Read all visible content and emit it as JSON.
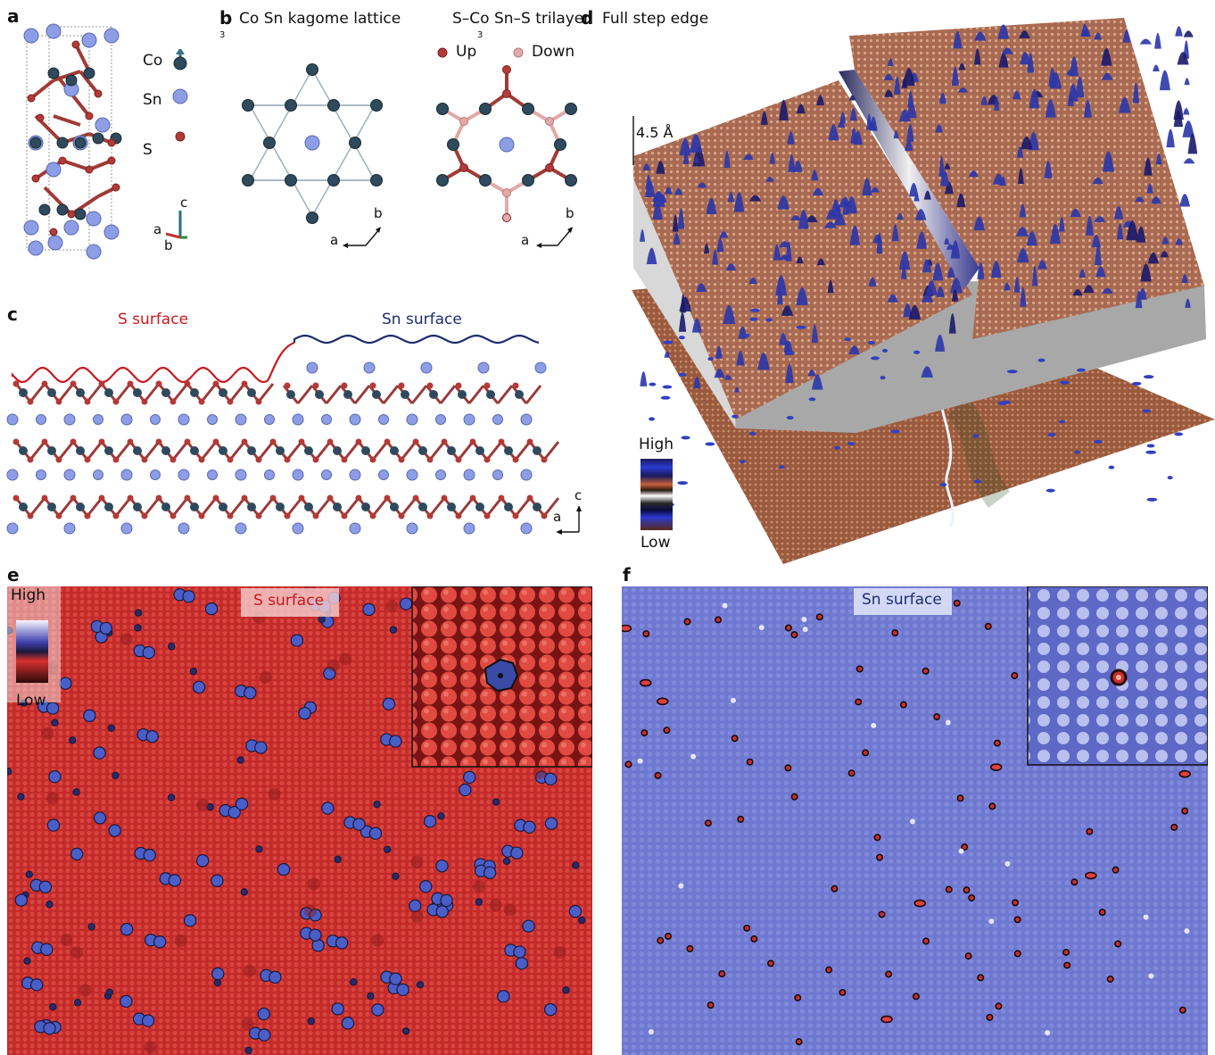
{
  "colors": {
    "co": "#2e4a5c",
    "sn": "#8e9ee6",
    "s": "#b33a36",
    "s_down": "#e3a8a8",
    "s_surface": "#c8191e",
    "sn_surface": "#1f2d6e",
    "e_bg": "#c8302e",
    "f_bg": "#6f78d0"
  },
  "panel_a": {
    "letter": "a",
    "legend": [
      {
        "label": "Co",
        "icon": "co-atom-arrow-icon"
      },
      {
        "label": "Sn",
        "icon": "sn-atom-icon"
      },
      {
        "label": "S",
        "icon": "s-atom-icon"
      }
    ],
    "axes": {
      "c": "c",
      "a": "a",
      "b": "b"
    }
  },
  "panel_b": {
    "letter": "b",
    "title_1_pre": "Co",
    "title_1_sub": "3",
    "title_1_post": "Sn kagome lattice",
    "title_2_pre": "S–Co",
    "title_2_sub": "3",
    "title_2_post": "Sn–S trilayer",
    "legend_up": "Up",
    "legend_down": "Down",
    "axis_a": "a",
    "axis_b": "b"
  },
  "panel_c": {
    "letter": "c",
    "s_surface_label": "S surface",
    "sn_surface_label": "Sn surface",
    "axis_c": "c",
    "axis_a": "a"
  },
  "panel_d": {
    "letter": "d",
    "title": "Full step edge",
    "height_label": "4.5 Å",
    "colorbar_high": "High",
    "colorbar_low": "Low"
  },
  "panel_e": {
    "letter": "e",
    "label": "S surface",
    "colorbar_high": "High",
    "colorbar_low": "Low"
  },
  "panel_f": {
    "letter": "f",
    "label": "Sn surface"
  }
}
